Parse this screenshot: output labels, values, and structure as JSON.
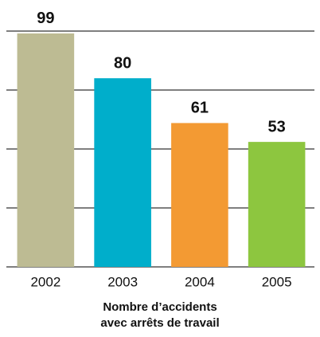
{
  "chart_data": {
    "type": "bar",
    "title": [
      "Nombre d’accidents",
      "avec arrêts de travail"
    ],
    "categories": [
      "2002",
      "2003",
      "2004",
      "2005"
    ],
    "values": [
      99,
      80,
      61,
      53
    ],
    "colors": [
      "#bdbb93",
      "#00aecb",
      "#f39a33",
      "#8dc63f"
    ],
    "ylim": [
      0,
      100
    ],
    "yticks": [
      0,
      25,
      50,
      75,
      100
    ],
    "grid": true
  }
}
